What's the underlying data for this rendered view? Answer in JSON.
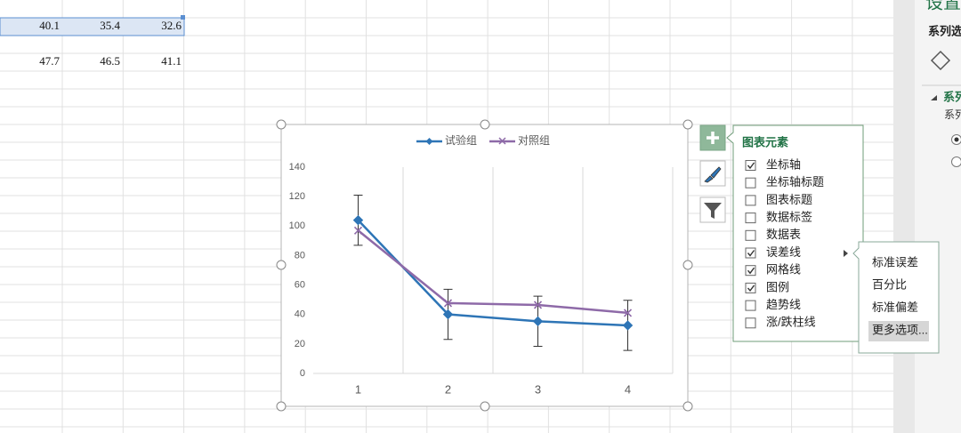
{
  "sheet": {
    "rows": [
      [
        40.1,
        35.4,
        32.6
      ],
      [
        47.7,
        46.5,
        41.1
      ]
    ]
  },
  "chart_data": {
    "type": "line",
    "categories": [
      "1",
      "2",
      "3",
      "4"
    ],
    "series": [
      {
        "name": "试验组",
        "color": "#2e75b6",
        "marker": "diamond",
        "values": [
          104,
          40.1,
          35.4,
          32.6
        ],
        "errors": [
          17,
          17,
          17,
          17
        ]
      },
      {
        "name": "对照组",
        "color": "#8e6aa8",
        "marker": "x",
        "values": [
          97,
          47.7,
          46.5,
          41.1
        ]
      }
    ],
    "ylim": [
      0,
      140
    ],
    "yticks": [
      0,
      20,
      40,
      60,
      80,
      100,
      120,
      140
    ],
    "legend": "top"
  },
  "chart_elements": {
    "title": "图表元素",
    "items": [
      {
        "label": "坐标轴",
        "checked": true
      },
      {
        "label": "坐标轴标题",
        "checked": false
      },
      {
        "label": "图表标题",
        "checked": false
      },
      {
        "label": "数据标签",
        "checked": false
      },
      {
        "label": "数据表",
        "checked": false
      },
      {
        "label": "误差线",
        "checked": true
      },
      {
        "label": "网格线",
        "checked": true
      },
      {
        "label": "图例",
        "checked": true
      },
      {
        "label": "趋势线",
        "checked": false
      },
      {
        "label": "涨/跌柱线",
        "checked": false
      }
    ]
  },
  "error_bar_menu": {
    "items": [
      "标准误差",
      "百分比",
      "标准偏差",
      "更多选项..."
    ]
  },
  "side_panel": {
    "title": "设置",
    "section": "系列选",
    "group": "系列",
    "label": "系列"
  }
}
